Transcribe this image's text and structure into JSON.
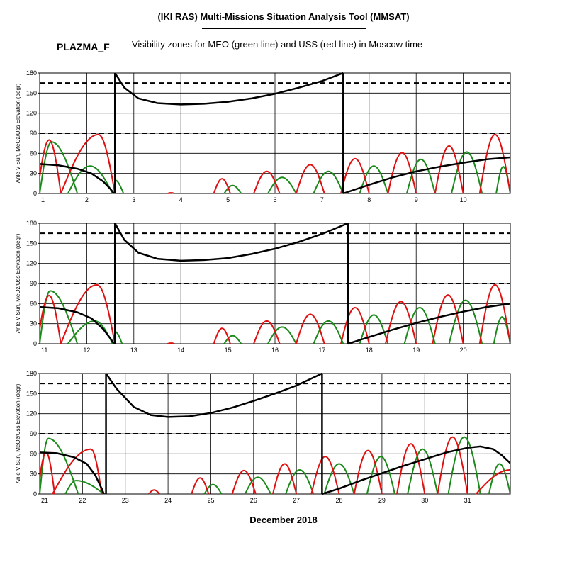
{
  "header": {
    "title": "(IKI RAS) Multi-Missions Situation Analysis Tool (MMSAT)",
    "mission": "PLAZMA_F",
    "subtitle": "Visibility zones for MEO (green line) and USS (red line) in Moscow time"
  },
  "footer": {
    "xlabel": "December 2018"
  },
  "colors": {
    "meo": "#1a8a1a",
    "uss": "#e01010",
    "sun_angle": "#000000",
    "grid": "#000000"
  },
  "chart_data": [
    {
      "type": "line",
      "ylabel": "Anle V Sun, MeOz/Uss Elevation (degr)",
      "xlim": [
        1,
        11
      ],
      "ylim": [
        0,
        180
      ],
      "x_ticks": [
        1,
        2,
        3,
        4,
        5,
        6,
        7,
        8,
        9,
        10
      ],
      "y_ticks": [
        0,
        30,
        60,
        90,
        120,
        150,
        180
      ],
      "reference_lines": [
        90,
        165
      ],
      "sun_angle": [
        [
          [
            1.0,
            44
          ],
          [
            1.4,
            42
          ],
          [
            1.8,
            37
          ],
          [
            2.1,
            30
          ],
          [
            2.35,
            18
          ],
          [
            2.5,
            7
          ],
          [
            2.58,
            0
          ]
        ],
        [
          [
            2.6,
            180
          ],
          [
            2.8,
            158
          ],
          [
            3.1,
            142
          ],
          [
            3.5,
            135
          ],
          [
            4.0,
            133
          ],
          [
            4.5,
            134
          ],
          [
            5.0,
            137
          ],
          [
            5.5,
            142
          ],
          [
            6.0,
            149
          ],
          [
            6.5,
            158
          ],
          [
            7.0,
            168
          ],
          [
            7.45,
            180
          ]
        ],
        [
          [
            7.45,
            0
          ],
          [
            8.0,
            13
          ],
          [
            8.5,
            24
          ],
          [
            9.0,
            33
          ],
          [
            9.5,
            40
          ],
          [
            10.0,
            46
          ],
          [
            10.5,
            51
          ],
          [
            11.0,
            54
          ]
        ]
      ],
      "uss_passes": [
        {
          "start": 0.95,
          "end": 1.45,
          "peak": 80
        },
        {
          "start": 1.45,
          "end": 2.6,
          "peak": 88,
          "peak_at": 2.25
        },
        {
          "start": 3.72,
          "end": 3.86,
          "peak": 1
        },
        {
          "start": 4.7,
          "end": 5.05,
          "peak": 22
        },
        {
          "start": 5.55,
          "end": 6.1,
          "peak": 33
        },
        {
          "start": 6.45,
          "end": 7.05,
          "peak": 43
        },
        {
          "start": 7.4,
          "end": 8.0,
          "peak": 52
        },
        {
          "start": 8.4,
          "end": 9.0,
          "peak": 61
        },
        {
          "start": 9.4,
          "end": 10.0,
          "peak": 71
        },
        {
          "start": 10.35,
          "end": 11.0,
          "peak": 88
        }
      ],
      "meo_passes": [
        {
          "start": 1.0,
          "end": 1.8,
          "peak": 77,
          "peak_at": 1.25
        },
        {
          "start": 1.6,
          "end": 2.55,
          "peak": 41,
          "peak_at": 2.07
        },
        {
          "start": 2.6,
          "end": 2.78,
          "peak": 20,
          "peak_at": 2.6
        },
        {
          "start": 4.92,
          "end": 5.28,
          "peak": 12
        },
        {
          "start": 5.85,
          "end": 6.45,
          "peak": 24
        },
        {
          "start": 6.82,
          "end": 7.45,
          "peak": 33
        },
        {
          "start": 7.8,
          "end": 8.4,
          "peak": 41
        },
        {
          "start": 8.8,
          "end": 9.4,
          "peak": 51
        },
        {
          "start": 9.75,
          "end": 10.4,
          "peak": 62
        },
        {
          "start": 10.7,
          "end": 11.0,
          "peak": 40
        }
      ]
    },
    {
      "type": "line",
      "ylabel": "Anle V Sun, MeOz/Uss Elevation (degr)",
      "xlim": [
        11,
        21
      ],
      "ylim": [
        0,
        180
      ],
      "x_ticks": [
        11,
        12,
        13,
        14,
        15,
        16,
        17,
        18,
        19,
        20
      ],
      "y_ticks": [
        0,
        30,
        60,
        90,
        120,
        150,
        180
      ],
      "reference_lines": [
        90,
        165
      ],
      "sun_angle": [
        [
          [
            11.0,
            55
          ],
          [
            11.4,
            53
          ],
          [
            11.8,
            47
          ],
          [
            12.1,
            38
          ],
          [
            12.35,
            22
          ],
          [
            12.5,
            8
          ],
          [
            12.58,
            0
          ]
        ],
        [
          [
            12.6,
            180
          ],
          [
            12.8,
            155
          ],
          [
            13.1,
            136
          ],
          [
            13.5,
            127
          ],
          [
            14.0,
            124
          ],
          [
            14.5,
            125
          ],
          [
            15.0,
            128
          ],
          [
            15.5,
            134
          ],
          [
            16.0,
            142
          ],
          [
            16.5,
            152
          ],
          [
            17.0,
            164
          ],
          [
            17.55,
            180
          ]
        ],
        [
          [
            17.55,
            0
          ],
          [
            18.0,
            10
          ],
          [
            18.5,
            21
          ],
          [
            19.0,
            31
          ],
          [
            19.5,
            40
          ],
          [
            20.0,
            48
          ],
          [
            20.5,
            55
          ],
          [
            21.0,
            60
          ]
        ]
      ],
      "uss_passes": [
        {
          "start": 10.95,
          "end": 11.45,
          "peak": 72
        },
        {
          "start": 11.45,
          "end": 12.6,
          "peak": 88,
          "peak_at": 12.22
        },
        {
          "start": 13.72,
          "end": 13.86,
          "peak": 1
        },
        {
          "start": 14.7,
          "end": 15.05,
          "peak": 23
        },
        {
          "start": 15.55,
          "end": 16.1,
          "peak": 34
        },
        {
          "start": 16.45,
          "end": 17.05,
          "peak": 44
        },
        {
          "start": 17.4,
          "end": 18.0,
          "peak": 54
        },
        {
          "start": 18.35,
          "end": 19.0,
          "peak": 63
        },
        {
          "start": 19.35,
          "end": 20.0,
          "peak": 73
        },
        {
          "start": 20.35,
          "end": 21.0,
          "peak": 88
        }
      ],
      "meo_passes": [
        {
          "start": 11.0,
          "end": 11.8,
          "peak": 79,
          "peak_at": 11.22
        },
        {
          "start": 11.6,
          "end": 12.55,
          "peak": 34,
          "peak_at": 12.17
        },
        {
          "start": 12.6,
          "end": 12.75,
          "peak": 18,
          "peak_at": 12.6
        },
        {
          "start": 14.92,
          "end": 15.28,
          "peak": 12
        },
        {
          "start": 15.85,
          "end": 16.45,
          "peak": 25
        },
        {
          "start": 16.82,
          "end": 17.45,
          "peak": 34
        },
        {
          "start": 17.8,
          "end": 18.4,
          "peak": 43
        },
        {
          "start": 18.75,
          "end": 19.4,
          "peak": 54
        },
        {
          "start": 19.7,
          "end": 20.4,
          "peak": 65
        },
        {
          "start": 20.65,
          "end": 21.0,
          "peak": 40
        }
      ]
    },
    {
      "type": "line",
      "ylabel": "Anle V Sun, MeOz/Uss Elevation (degr)",
      "xlim": [
        21,
        32
      ],
      "ylim": [
        0,
        180
      ],
      "x_ticks": [
        21,
        22,
        23,
        24,
        25,
        26,
        27,
        28,
        29,
        30,
        31
      ],
      "y_ticks": [
        0,
        30,
        60,
        90,
        120,
        150,
        180
      ],
      "reference_lines": [
        90,
        165
      ],
      "sun_angle": [
        [
          [
            21.0,
            62
          ],
          [
            21.4,
            61
          ],
          [
            21.8,
            55
          ],
          [
            22.1,
            45
          ],
          [
            22.3,
            28
          ],
          [
            22.45,
            8
          ],
          [
            22.5,
            0
          ]
        ],
        [
          [
            22.55,
            180
          ],
          [
            22.8,
            157
          ],
          [
            23.2,
            130
          ],
          [
            23.6,
            118
          ],
          [
            24.0,
            115
          ],
          [
            24.5,
            116
          ],
          [
            25.0,
            121
          ],
          [
            25.5,
            129
          ],
          [
            26.0,
            139
          ],
          [
            26.5,
            150
          ],
          [
            27.0,
            162
          ],
          [
            27.6,
            180
          ]
        ],
        [
          [
            27.6,
            0
          ],
          [
            28.0,
            8
          ],
          [
            28.5,
            20
          ],
          [
            29.0,
            31
          ],
          [
            29.5,
            42
          ],
          [
            30.0,
            52
          ],
          [
            30.5,
            62
          ],
          [
            31.0,
            69
          ],
          [
            31.3,
            71
          ],
          [
            31.6,
            67
          ],
          [
            31.8,
            58
          ],
          [
            32.0,
            46
          ]
        ]
      ],
      "uss_passes": [
        {
          "start": 20.95,
          "end": 21.35,
          "peak": 62
        },
        {
          "start": 21.3,
          "end": 22.45,
          "peak": 67,
          "peak_at": 22.2
        },
        {
          "start": 23.55,
          "end": 23.8,
          "peak": 6
        },
        {
          "start": 24.55,
          "end": 24.95,
          "peak": 24
        },
        {
          "start": 25.5,
          "end": 26.05,
          "peak": 35
        },
        {
          "start": 26.45,
          "end": 27.0,
          "peak": 45
        },
        {
          "start": 27.35,
          "end": 28.0,
          "peak": 56
        },
        {
          "start": 28.35,
          "end": 29.0,
          "peak": 65
        },
        {
          "start": 29.35,
          "end": 30.0,
          "peak": 75
        },
        {
          "start": 30.3,
          "end": 31.0,
          "peak": 85
        },
        {
          "start": 31.2,
          "end": 32.0,
          "peak": 36,
          "peak_at": 32.0
        }
      ],
      "meo_passes": [
        {
          "start": 21.0,
          "end": 21.9,
          "peak": 83,
          "peak_at": 21.2
        },
        {
          "start": 21.6,
          "end": 22.5,
          "peak": 20,
          "peak_at": 21.85
        },
        {
          "start": 24.85,
          "end": 25.25,
          "peak": 14
        },
        {
          "start": 25.8,
          "end": 26.4,
          "peak": 25
        },
        {
          "start": 26.75,
          "end": 27.4,
          "peak": 36
        },
        {
          "start": 27.65,
          "end": 28.35,
          "peak": 45
        },
        {
          "start": 28.65,
          "end": 29.3,
          "peak": 56
        },
        {
          "start": 29.6,
          "end": 30.3,
          "peak": 67
        },
        {
          "start": 30.55,
          "end": 31.3,
          "peak": 85
        },
        {
          "start": 31.5,
          "end": 32.0,
          "peak": 45
        }
      ]
    }
  ]
}
